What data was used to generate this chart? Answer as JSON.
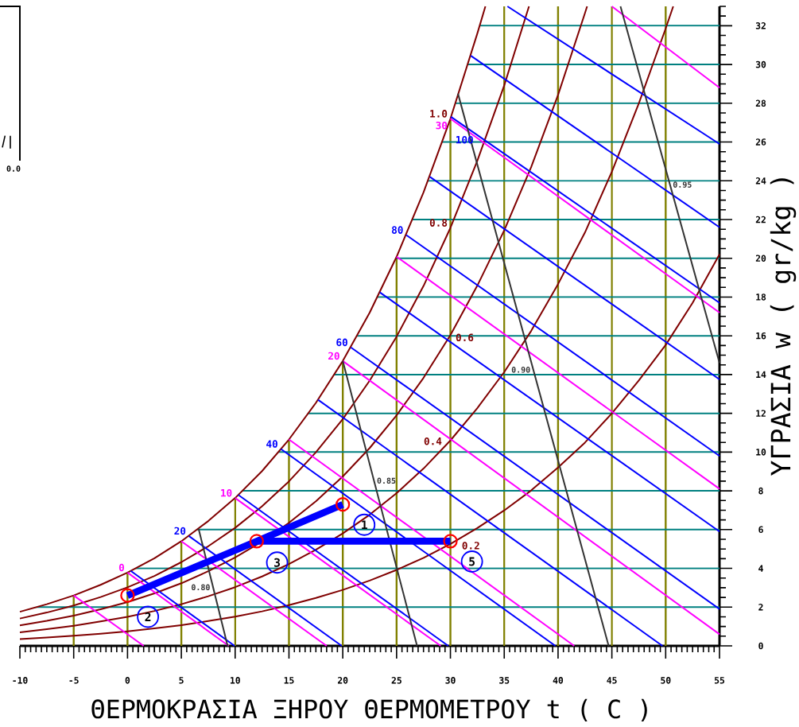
{
  "chart_data": {
    "type": "line",
    "xlabel": "ΘΕΡΜΟΚΡΑΣΙΑ ΞΗΡΟΥ ΘΕΡΜΟΜΕΤΡΟΥ t ( C )",
    "ylabel": "ΥΓΡΑΣΙΑ w ( gr/kg )",
    "xlim": [
      -10,
      55
    ],
    "ylim": [
      0,
      33
    ],
    "xticks": [
      -10,
      {
        "value": -9.5,
        "label": null
      },
      {
        "value": -9,
        "label": null
      },
      {
        "value": -8.5,
        "label": null
      },
      {
        "value": -8,
        "label": null
      },
      {
        "value": -7.5,
        "label": null
      },
      {
        "value": -7,
        "label": null
      },
      {
        "value": -6.5,
        "label": null
      },
      {
        "value": -6,
        "label": null
      },
      {
        "value": -5.5,
        "label": null
      },
      -5,
      {
        "value": -4.5,
        "label": null
      },
      {
        "value": -4,
        "label": null
      },
      {
        "value": -3.5,
        "label": null
      },
      {
        "value": -3,
        "label": null
      },
      {
        "value": -2.5,
        "label": null
      },
      {
        "value": -2,
        "label": null
      },
      {
        "value": -1.5,
        "label": null
      },
      {
        "value": -1,
        "label": null
      },
      {
        "value": -0.5,
        "label": null
      },
      0,
      {
        "value": 0.5,
        "label": null
      },
      {
        "value": 1,
        "label": null
      },
      {
        "value": 1.5,
        "label": null
      },
      {
        "value": 2,
        "label": null
      },
      {
        "value": 2.5,
        "label": null
      },
      {
        "value": 3,
        "label": null
      },
      {
        "value": 3.5,
        "label": null
      },
      {
        "value": 4,
        "label": null
      },
      {
        "value": 4.5,
        "label": null
      },
      5,
      {
        "value": 5.5,
        "label": null
      },
      {
        "value": 6,
        "label": null
      },
      {
        "value": 6.5,
        "label": null
      },
      {
        "value": 7,
        "label": null
      },
      {
        "value": 7.5,
        "label": null
      },
      {
        "value": 8,
        "label": null
      },
      {
        "value": 8.5,
        "label": null
      },
      {
        "value": 9,
        "label": null
      },
      {
        "value": 9.5,
        "label": null
      },
      10,
      {
        "value": 10.5,
        "label": null
      },
      {
        "value": 11,
        "label": null
      },
      {
        "value": 11.5,
        "label": null
      },
      {
        "value": 12,
        "label": null
      },
      {
        "value": 12.5,
        "label": null
      },
      {
        "value": 13,
        "label": null
      },
      {
        "value": 13.5,
        "label": null
      },
      {
        "value": 14,
        "label": null
      },
      {
        "value": 14.5,
        "label": null
      },
      15,
      {
        "value": 15.5,
        "label": null
      },
      {
        "value": 16,
        "label": null
      },
      {
        "value": 16.5,
        "label": null
      },
      {
        "value": 17,
        "label": null
      },
      {
        "value": 17.5,
        "label": null
      },
      {
        "value": 18,
        "label": null
      },
      {
        "value": 18.5,
        "label": null
      },
      {
        "value": 19,
        "label": null
      },
      {
        "value": 19.5,
        "label": null
      },
      20,
      {
        "value": 20.5,
        "label": null
      },
      {
        "value": 21,
        "label": null
      },
      {
        "value": 21.5,
        "label": null
      },
      {
        "value": 22,
        "label": null
      },
      {
        "value": 22.5,
        "label": null
      },
      {
        "value": 23,
        "label": null
      },
      {
        "value": 23.5,
        "label": null
      },
      {
        "value": 24,
        "label": null
      },
      {
        "value": 24.5,
        "label": null
      },
      25,
      {
        "value": 25.5,
        "label": null
      },
      {
        "value": 26,
        "label": null
      },
      {
        "value": 26.5,
        "label": null
      },
      {
        "value": 27,
        "label": null
      },
      {
        "value": 27.5,
        "label": null
      },
      {
        "value": 28,
        "label": null
      },
      {
        "value": 28.5,
        "label": null
      },
      {
        "value": 29,
        "label": null
      },
      {
        "value": 29.5,
        "label": null
      },
      30,
      {
        "value": 30.5,
        "label": null
      },
      {
        "value": 31,
        "label": null
      },
      {
        "value": 31.5,
        "label": null
      },
      {
        "value": 32,
        "label": null
      },
      {
        "value": 32.5,
        "label": null
      },
      {
        "value": 33,
        "label": null
      },
      {
        "value": 33.5,
        "label": null
      },
      {
        "value": 34,
        "label": null
      },
      {
        "value": 34.5,
        "label": null
      },
      35,
      {
        "value": 35.5,
        "label": null
      },
      {
        "value": 36,
        "label": null
      },
      {
        "value": 36.5,
        "label": null
      },
      {
        "value": 37,
        "label": null
      },
      {
        "value": 37.5,
        "label": null
      },
      {
        "value": 38,
        "label": null
      },
      {
        "value": 38.5,
        "label": null
      },
      {
        "value": 39,
        "label": null
      },
      {
        "value": 39.5,
        "label": null
      },
      40,
      {
        "value": 40.5,
        "label": null
      },
      {
        "value": 41,
        "label": null
      },
      {
        "value": 41.5,
        "label": null
      },
      {
        "value": 42,
        "label": null
      },
      {
        "value": 42.5,
        "label": null
      },
      {
        "value": 43,
        "label": null
      },
      {
        "value": 43.5,
        "label": null
      },
      {
        "value": 44,
        "label": null
      },
      {
        "value": 44.5,
        "label": null
      },
      45,
      {
        "value": 45.5,
        "label": null
      },
      {
        "value": 46,
        "label": null
      },
      {
        "value": 46.5,
        "label": null
      },
      {
        "value": 47,
        "label": null
      },
      {
        "value": 47.5,
        "label": null
      },
      {
        "value": 48,
        "label": null
      },
      {
        "value": 48.5,
        "label": null
      },
      {
        "value": 49,
        "label": null
      },
      {
        "value": 49.5,
        "label": null
      },
      50,
      {
        "value": 50.5,
        "label": null
      },
      {
        "value": 51,
        "label": null
      },
      {
        "value": 51.5,
        "label": null
      },
      {
        "value": 52,
        "label": null
      },
      {
        "value": 52.5,
        "label": null
      },
      {
        "value": 53,
        "label": null
      },
      {
        "value": 53.5,
        "label": null
      },
      {
        "value": 54,
        "label": null
      },
      {
        "value": 54.5,
        "label": null
      },
      55
    ],
    "yticks": [
      0,
      {
        "value": 0.5,
        "label": null
      },
      {
        "value": 1,
        "label": null
      },
      {
        "value": 1.5,
        "label": null
      },
      2,
      {
        "value": 2.5,
        "label": null
      },
      {
        "value": 3,
        "label": null
      },
      {
        "value": 3.5,
        "label": null
      },
      4,
      {
        "value": 4.5,
        "label": null
      },
      {
        "value": 5,
        "label": null
      },
      {
        "value": 5.5,
        "label": null
      },
      6,
      {
        "value": 6.5,
        "label": null
      },
      {
        "value": 7,
        "label": null
      },
      {
        "value": 7.5,
        "label": null
      },
      8,
      {
        "value": 8.5,
        "label": null
      },
      {
        "value": 9,
        "label": null
      },
      {
        "value": 9.5,
        "label": null
      },
      10,
      {
        "value": 10.5,
        "label": null
      },
      {
        "value": 11,
        "label": null
      },
      {
        "value": 11.5,
        "label": null
      },
      12,
      {
        "value": 12.5,
        "label": null
      },
      {
        "value": 13,
        "label": null
      },
      {
        "value": 13.5,
        "label": null
      },
      14,
      {
        "value": 14.5,
        "label": null
      },
      {
        "value": 15,
        "label": null
      },
      {
        "value": 15.5,
        "label": null
      },
      16,
      {
        "value": 16.5,
        "label": null
      },
      {
        "value": 17,
        "label": null
      },
      {
        "value": 17.5,
        "label": null
      },
      18,
      {
        "value": 18.5,
        "label": null
      },
      {
        "value": 19,
        "label": null
      },
      {
        "value": 19.5,
        "label": null
      },
      20,
      {
        "value": 20.5,
        "label": null
      },
      {
        "value": 21,
        "label": null
      },
      {
        "value": 21.5,
        "label": null
      },
      22,
      {
        "value": 22.5,
        "label": null
      },
      {
        "value": 23,
        "label": null
      },
      {
        "value": 23.5,
        "label": null
      },
      24,
      {
        "value": 24.5,
        "label": null
      },
      {
        "value": 25,
        "label": null
      },
      {
        "value": 25.5,
        "label": null
      },
      26,
      {
        "value": 26.5,
        "label": null
      },
      {
        "value": 27,
        "label": null
      },
      {
        "value": 27.5,
        "label": null
      },
      28,
      {
        "value": 28.5,
        "label": null
      },
      {
        "value": 29,
        "label": null
      },
      {
        "value": 29.5,
        "label": null
      },
      30,
      {
        "value": 30.5,
        "label": null
      },
      {
        "value": 31,
        "label": null
      },
      {
        "value": 31.5,
        "label": null
      },
      32,
      {
        "value": 32.5,
        "label": null
      },
      {
        "value": 33,
        "label": null
      }
    ],
    "grid": true,
    "series": [
      {
        "name": "1.0",
        "color": "#800000",
        "x": [
          -10,
          -7.5,
          -5,
          -2.5,
          0,
          2.5,
          5,
          7.5,
          10,
          12.5,
          15,
          17.5,
          20,
          22.5,
          25,
          27.5,
          30,
          32.5,
          33.25
        ],
        "values": [
          1.76,
          2.15,
          2.6,
          3.15,
          3.78,
          4.52,
          5.4,
          6.44,
          7.63,
          9.02,
          10.65,
          12.54,
          14.7,
          17.2,
          20.08,
          23.4,
          27.2,
          31.6,
          33
        ]
      },
      {
        "name": "0.8",
        "color": "#800000",
        "x": [
          -10,
          -7.5,
          -5,
          -2.5,
          0,
          2.5,
          5,
          7.5,
          10,
          12.5,
          15,
          17.5,
          20,
          22.5,
          25,
          27.5,
          30,
          32.5,
          35,
          37.3
        ],
        "values": [
          1.41,
          1.72,
          2.08,
          2.52,
          3.02,
          3.61,
          4.32,
          5.14,
          6.09,
          7.2,
          8.49,
          9.99,
          11.7,
          13.69,
          15.96,
          18.57,
          21.57,
          25.03,
          28.92,
          33
        ]
      },
      {
        "name": "0.6",
        "color": "#800000",
        "x": [
          -10,
          -7.5,
          -5,
          -2.5,
          0,
          2.5,
          5,
          7.5,
          10,
          12.5,
          15,
          17.5,
          20,
          22.5,
          25,
          27.5,
          30,
          32.5,
          35,
          37.5,
          40,
          42.5,
          42.7
        ],
        "values": [
          1.06,
          1.29,
          1.56,
          1.89,
          2.26,
          2.71,
          3.23,
          3.85,
          4.56,
          5.38,
          6.35,
          7.46,
          8.74,
          10.21,
          11.9,
          13.83,
          16.04,
          18.59,
          21.44,
          24.7,
          28.43,
          32.65,
          33
        ]
      },
      {
        "name": "0.4",
        "color": "#800000",
        "x": [
          -10,
          -7.5,
          -5,
          -2.5,
          0,
          2.5,
          5,
          7.5,
          10,
          12.5,
          15,
          17.5,
          20,
          22.5,
          25,
          27.5,
          30,
          32.5,
          35,
          37.5,
          40,
          42.5,
          45,
          47.5,
          50,
          50.7
        ],
        "values": [
          0.7,
          0.86,
          1.04,
          1.26,
          1.5,
          1.8,
          2.15,
          2.56,
          3.03,
          3.58,
          4.22,
          4.96,
          5.8,
          6.77,
          7.88,
          9.15,
          10.6,
          12.27,
          14.13,
          16.25,
          18.67,
          21.33,
          24.47,
          27.99,
          31.86,
          33
        ]
      },
      {
        "name": "0.2",
        "color": "#800000",
        "x": [
          -10,
          -7.5,
          -5,
          -2.5,
          0,
          2.5,
          5,
          7.5,
          10,
          12.5,
          15,
          17.5,
          20,
          22.5,
          25,
          27.5,
          30,
          32.5,
          35,
          37.5,
          40,
          42.5,
          45,
          47.5,
          50,
          52.5,
          55
        ],
        "values": [
          0.35,
          0.43,
          0.52,
          0.63,
          0.75,
          0.9,
          1.07,
          1.28,
          1.51,
          1.78,
          2.1,
          2.47,
          2.89,
          3.37,
          3.92,
          4.54,
          5.26,
          6.08,
          6.99,
          8.02,
          9.2,
          10.49,
          12.0,
          13.69,
          15.53,
          17.7,
          20.2
        ]
      },
      {
        "color": "#0000ff",
        "x": [
          0.3,
          9.95
        ],
        "values": [
          3.87,
          0
        ]
      },
      {
        "name": "20",
        "color": "#0000ff",
        "x": [
          5.7,
          19.9
        ],
        "values": [
          5.67,
          0
        ]
      },
      {
        "color": "#0000ff",
        "x": [
          10.3,
          29.8
        ],
        "values": [
          7.79,
          0
        ]
      },
      {
        "name": "40",
        "color": "#0000ff",
        "x": [
          14.25,
          39.75
        ],
        "values": [
          10.16,
          0
        ]
      },
      {
        "color": "#0000ff",
        "x": [
          17.7,
          49.7
        ],
        "values": [
          12.7,
          0
        ]
      },
      {
        "name": "60",
        "color": "#0000ff",
        "x": [
          20.75,
          55
        ],
        "values": [
          15.4,
          1.9
        ]
      },
      {
        "color": "#0000ff",
        "x": [
          23.45,
          55
        ],
        "values": [
          18.24,
          5.9
        ]
      },
      {
        "name": "80",
        "color": "#0000ff",
        "x": [
          25.9,
          55
        ],
        "values": [
          21.2,
          9.8
        ]
      },
      {
        "color": "#0000ff",
        "x": [
          28.1,
          55
        ],
        "values": [
          24.2,
          13.75
        ]
      },
      {
        "name": "100",
        "color": "#0000ff",
        "x": [
          30.05,
          55
        ],
        "values": [
          27.3,
          17.7
        ]
      },
      {
        "color": "#0000ff",
        "x": [
          31.9,
          55
        ],
        "values": [
          30.45,
          21.6
        ]
      },
      {
        "color": "#0000ff",
        "x": [
          35.3,
          55
        ],
        "values": [
          33,
          25.9
        ]
      },
      {
        "color": "#ff00ff",
        "x": [
          -5,
          1.5
        ],
        "values": [
          2.6,
          0
        ]
      },
      {
        "name": "0",
        "color": "#ff00ff",
        "x": [
          0,
          9.4
        ],
        "values": [
          3.78,
          0
        ]
      },
      {
        "color": "#ff00ff",
        "x": [
          5,
          18.5
        ],
        "values": [
          5.4,
          0
        ]
      },
      {
        "name": "10",
        "color": "#ff00ff",
        "x": [
          10,
          29.1
        ],
        "values": [
          7.63,
          0
        ]
      },
      {
        "color": "#ff00ff",
        "x": [
          15,
          41.5
        ],
        "values": [
          10.65,
          0
        ]
      },
      {
        "name": "20",
        "color": "#ff00ff",
        "x": [
          20,
          55
        ],
        "values": [
          14.7,
          0.6
        ]
      },
      {
        "color": "#ff00ff",
        "x": [
          25,
          55
        ],
        "values": [
          20.08,
          8.1
        ]
      },
      {
        "name": "30",
        "color": "#ff00ff",
        "x": [
          30,
          55
        ],
        "values": [
          27.2,
          17.2
        ]
      },
      {
        "color": "#ff00ff",
        "x": [
          45,
          55
        ],
        "values": [
          33,
          28.8
        ]
      },
      {
        "name": "0.80",
        "color": "#333333",
        "x": [
          6.6,
          9.3
        ],
        "values": [
          6.05,
          0
        ]
      },
      {
        "name": "0.85",
        "color": "#333333",
        "x": [
          20,
          26.9
        ],
        "values": [
          14.7,
          0
        ]
      },
      {
        "name": "0.90",
        "color": "#333333",
        "x": [
          30.7,
          44.7
        ],
        "values": [
          28.5,
          0
        ]
      },
      {
        "name": "0.95",
        "color": "#333333",
        "x": [
          45.8,
          55
        ],
        "values": [
          33,
          14.6
        ]
      },
      {
        "color": "#0000ff",
        "x": [
          0,
          12,
          20
        ],
        "values": [
          2.6,
          5.4,
          7.3
        ]
      },
      {
        "color": "#0000ff",
        "x": [
          12,
          30
        ],
        "values": [
          5.4,
          5.4
        ]
      },
      {
        "type": "scatter",
        "marker": "circle",
        "color": "#ff0000",
        "x": [
          0,
          12,
          20,
          30
        ],
        "values": [
          2.6,
          5.4,
          7.3,
          5.4
        ]
      }
    ],
    "annotations": [
      "0.0",
      {
        "text": "1",
        "x": 22,
        "y": 6.25
      },
      {
        "text": "2",
        "x": 1.9,
        "y": 1.5
      },
      {
        "text": "3",
        "x": 13.9,
        "y": 4.3
      },
      {
        "text": "5",
        "x": 32,
        "y": 4.35
      }
    ]
  }
}
